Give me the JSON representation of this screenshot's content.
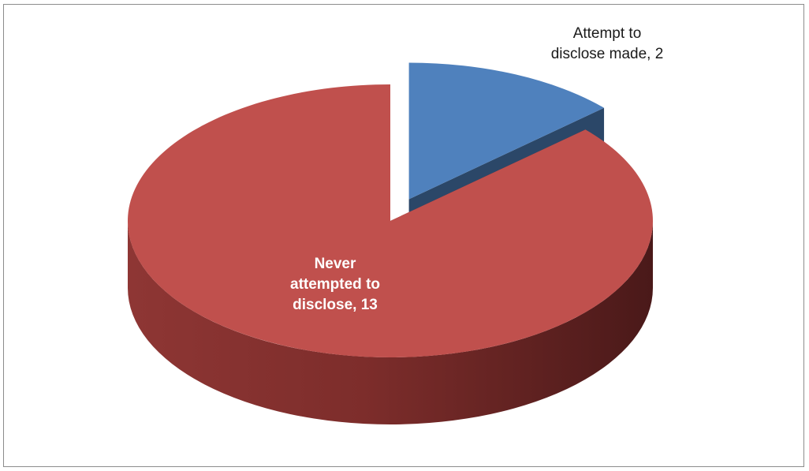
{
  "chart_data": {
    "type": "pie",
    "slices": [
      {
        "name": "Attempt to disclose made",
        "value": 2,
        "label_lines": [
          "Attempt to",
          "disclose made, 2"
        ],
        "color": "#4f81bd",
        "exploded": true
      },
      {
        "name": "Never attempted to disclose",
        "value": 13,
        "label_lines": [
          "Never",
          "attempted to",
          "disclose, 13"
        ],
        "color": "#c0504d",
        "exploded": false
      }
    ],
    "style": "3d",
    "legend": "none"
  }
}
